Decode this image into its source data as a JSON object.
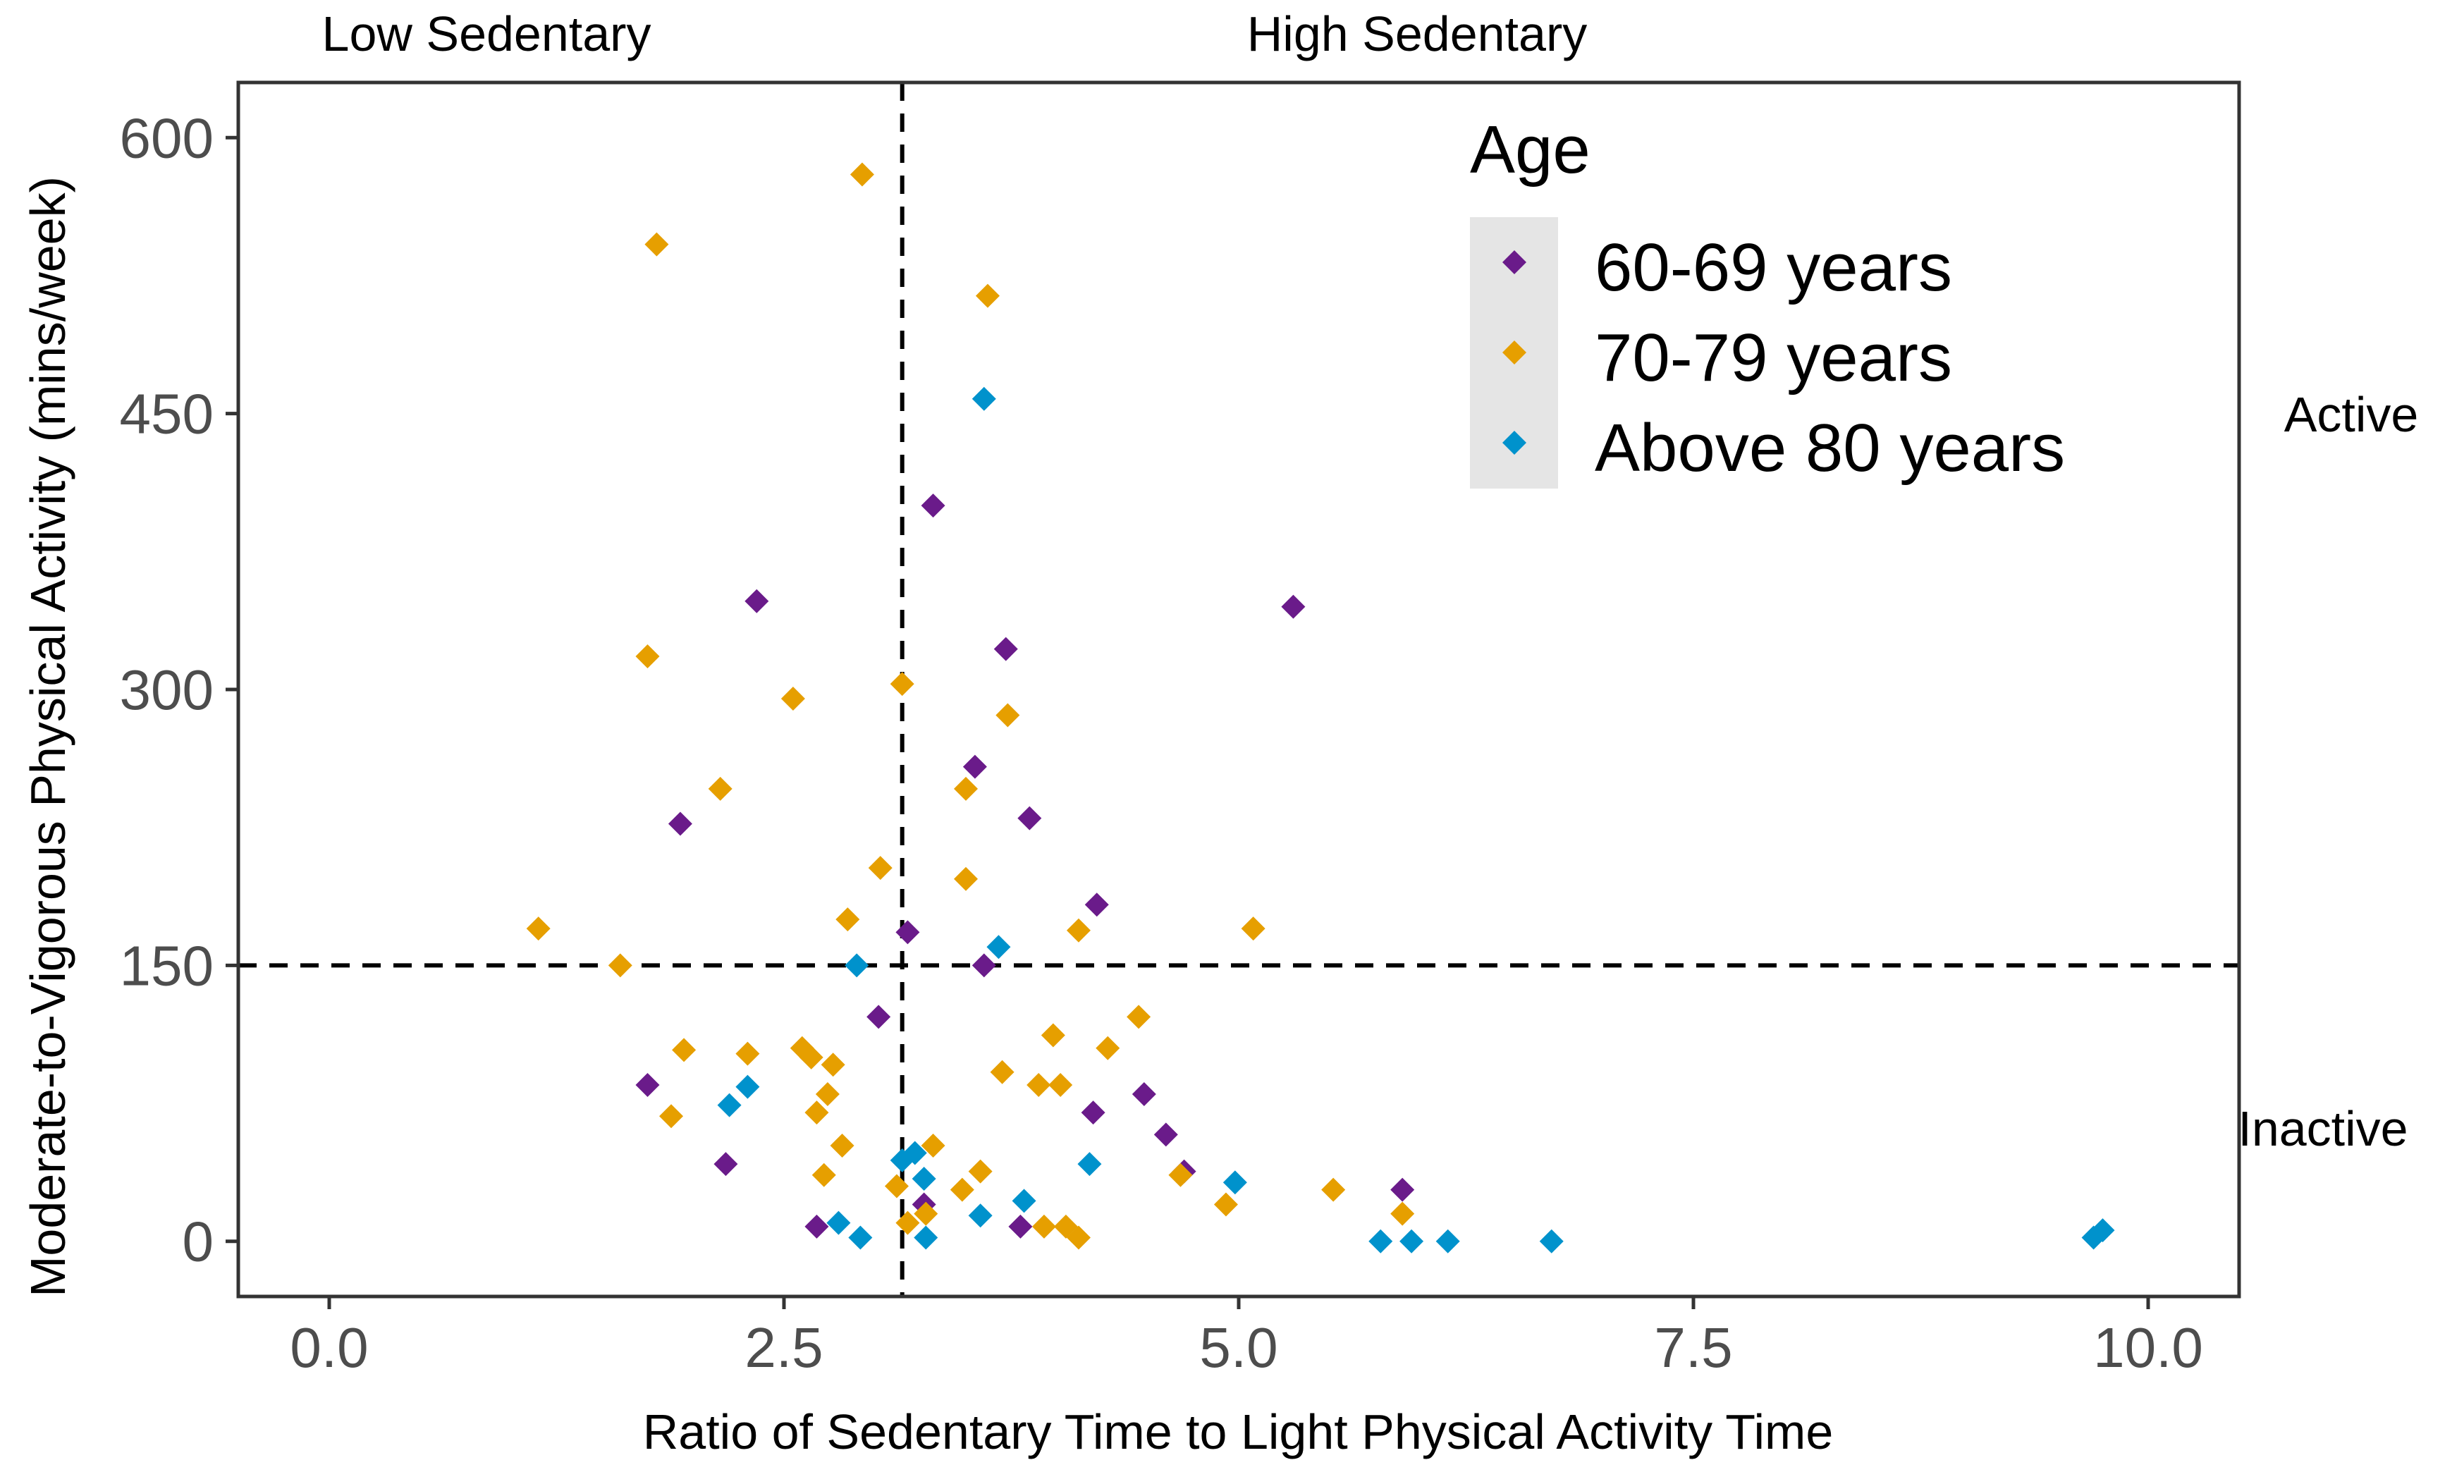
{
  "chart_data": {
    "type": "scatter",
    "title": "",
    "xlabel": "Ratio of Sedentary Time to Light Physical Activity Time",
    "ylabel": "Moderate-to-Vigorous Physical Activity (mins/week)",
    "xlim": [
      -0.5,
      10.5
    ],
    "ylim": [
      -30,
      630
    ],
    "x_ticks": [
      0,
      2.5,
      5,
      7.5,
      10
    ],
    "x_tick_labels": [
      "0.0",
      "2.5",
      "5.0",
      "7.5",
      "10.0"
    ],
    "y_ticks": [
      0,
      150,
      300,
      450,
      600
    ],
    "y_tick_labels": [
      "0",
      "150",
      "300",
      "450",
      "600"
    ],
    "grid": false,
    "reference_lines": {
      "vertical_x": 3.15,
      "horizontal_y": 150
    },
    "region_labels": {
      "top_left": "Low Sedentary",
      "top_right": "High Sedentary",
      "right_upper": "Active",
      "right_lower": "Inactive"
    },
    "legend": {
      "title": "Age",
      "position": "top-right"
    },
    "marker": "diamond",
    "series": [
      {
        "name": "60-69 years",
        "color": "#6a1b8a",
        "points": [
          [
            1.75,
            85
          ],
          [
            1.93,
            227
          ],
          [
            2.18,
            42
          ],
          [
            2.35,
            348
          ],
          [
            2.68,
            8
          ],
          [
            3.02,
            122
          ],
          [
            3.18,
            168
          ],
          [
            3.27,
            20
          ],
          [
            3.32,
            400
          ],
          [
            3.55,
            258
          ],
          [
            3.6,
            150
          ],
          [
            3.72,
            322
          ],
          [
            3.8,
            8
          ],
          [
            3.85,
            230
          ],
          [
            4.2,
            70
          ],
          [
            4.22,
            183
          ],
          [
            4.48,
            80
          ],
          [
            4.6,
            58
          ],
          [
            4.7,
            38
          ],
          [
            5.3,
            345
          ],
          [
            5.9,
            28
          ]
        ]
      },
      {
        "name": "70-79 years",
        "color": "#e69f00",
        "points": [
          [
            1.15,
            170
          ],
          [
            1.6,
            150
          ],
          [
            1.75,
            318
          ],
          [
            1.8,
            542
          ],
          [
            1.88,
            68
          ],
          [
            1.95,
            104
          ],
          [
            2.15,
            246
          ],
          [
            2.3,
            102
          ],
          [
            2.55,
            295
          ],
          [
            2.6,
            105
          ],
          [
            2.65,
            100
          ],
          [
            2.68,
            70
          ],
          [
            2.72,
            36
          ],
          [
            2.74,
            80
          ],
          [
            2.77,
            96
          ],
          [
            2.82,
            52
          ],
          [
            2.85,
            175
          ],
          [
            2.93,
            580
          ],
          [
            3.03,
            203
          ],
          [
            3.12,
            30
          ],
          [
            3.15,
            303
          ],
          [
            3.18,
            10
          ],
          [
            3.28,
            15
          ],
          [
            3.32,
            52
          ],
          [
            3.48,
            28
          ],
          [
            3.5,
            246
          ],
          [
            3.5,
            197
          ],
          [
            3.58,
            38
          ],
          [
            3.62,
            514
          ],
          [
            3.7,
            92
          ],
          [
            3.73,
            286
          ],
          [
            3.9,
            85
          ],
          [
            3.93,
            8
          ],
          [
            3.98,
            112
          ],
          [
            4.02,
            85
          ],
          [
            4.05,
            8
          ],
          [
            4.12,
            2
          ],
          [
            4.12,
            169
          ],
          [
            4.28,
            105
          ],
          [
            4.45,
            122
          ],
          [
            4.68,
            36
          ],
          [
            4.93,
            20
          ],
          [
            5.08,
            170
          ],
          [
            5.52,
            28
          ],
          [
            5.9,
            15
          ]
        ]
      },
      {
        "name": "Above 80 years",
        "color": "#0092cc",
        "points": [
          [
            2.2,
            74
          ],
          [
            2.3,
            84
          ],
          [
            2.8,
            10
          ],
          [
            2.9,
            150
          ],
          [
            2.92,
            2
          ],
          [
            3.15,
            44
          ],
          [
            3.22,
            48
          ],
          [
            3.27,
            34
          ],
          [
            3.28,
            2
          ],
          [
            3.58,
            14
          ],
          [
            3.6,
            458
          ],
          [
            3.68,
            160
          ],
          [
            3.82,
            22
          ],
          [
            4.18,
            42
          ],
          [
            4.98,
            32
          ],
          [
            5.78,
            0
          ],
          [
            5.95,
            0
          ],
          [
            6.15,
            0
          ],
          [
            6.72,
            0
          ],
          [
            9.7,
            2
          ],
          [
            9.75,
            6
          ]
        ]
      }
    ]
  }
}
